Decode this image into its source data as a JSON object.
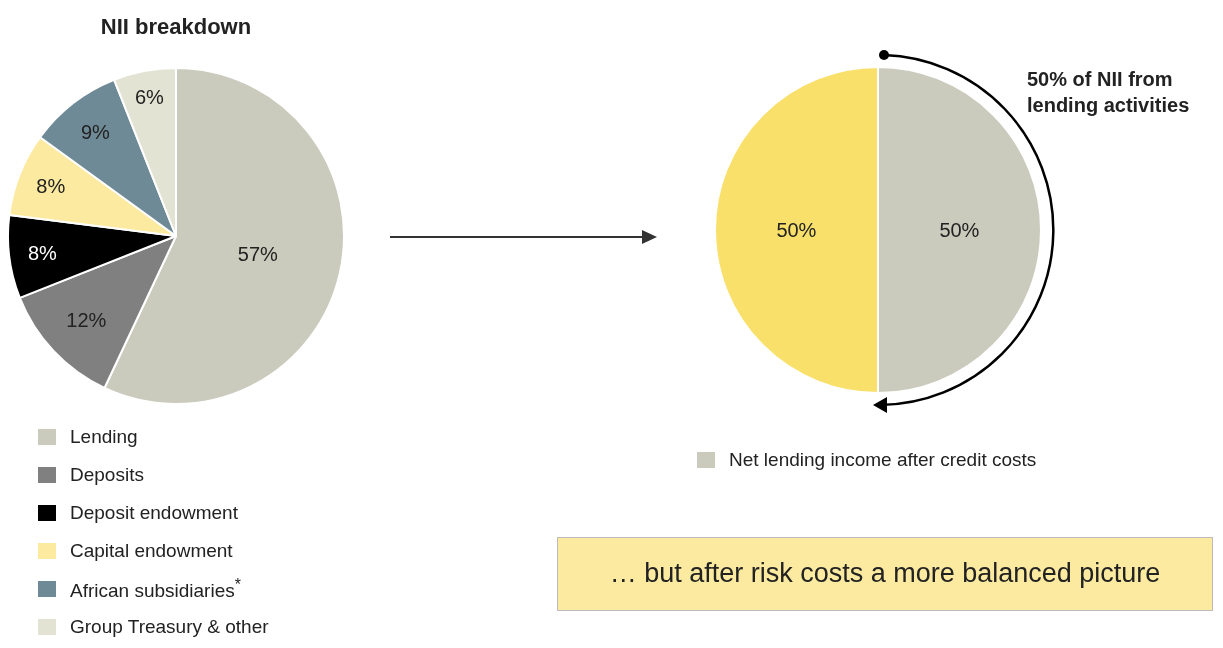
{
  "chart_data": [
    {
      "type": "pie",
      "title": "NII breakdown",
      "categories": [
        "Lending",
        "Deposits",
        "Deposit endowment",
        "Capital endowment",
        "African subsidiaries$^{*}$",
        "Group Treasury & other"
      ],
      "values": [
        57,
        12,
        8,
        8,
        9,
        6
      ],
      "colors": [
        "#cbcbbd",
        "#808080",
        "#000000",
        "#fbeaa0",
        "#6f8a97",
        "#e3e3d3"
      ],
      "value_labels": [
        "57%",
        "12%",
        "8%",
        "8%",
        "9%",
        "6%"
      ],
      "legend": "bottom"
    },
    {
      "type": "pie",
      "categories": [
        "Net lending income after credit costs",
        null
      ],
      "values": [
        50,
        50
      ],
      "colors": [
        "#cbcbbd",
        "#f9e06b"
      ],
      "value_labels": [
        "50%",
        "50%"
      ],
      "legend": "bottom",
      "annotations": [
        "50% of NII from lending activities",
        "… but after risk costs a more balanced picture"
      ]
    }
  ]
}
